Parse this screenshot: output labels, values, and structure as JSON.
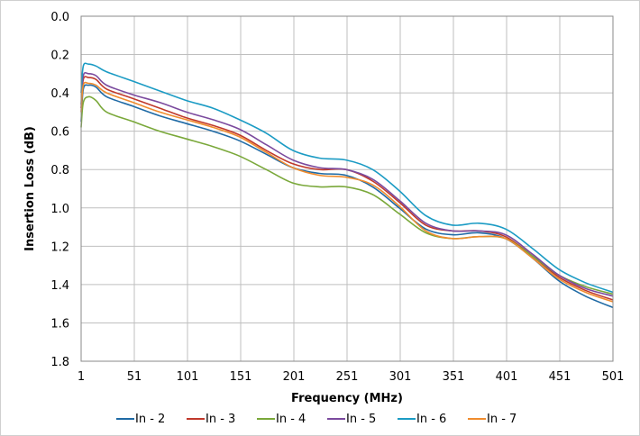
{
  "chart_data": {
    "type": "line",
    "title": "",
    "xlabel": "Frequency (MHz)",
    "ylabel": "Insertion Loss (dB)",
    "xlim": [
      1,
      501
    ],
    "ylim": [
      0.0,
      1.8
    ],
    "y_reversed": true,
    "x_ticks": [
      1,
      51,
      101,
      151,
      201,
      251,
      301,
      351,
      401,
      451,
      501
    ],
    "x_tick_labels": [
      "1",
      "51",
      "101",
      "151",
      "201",
      "251",
      "301",
      "351",
      "401",
      "451",
      "501"
    ],
    "y_ticks": [
      0.0,
      0.2,
      0.4,
      0.6,
      0.8,
      1.0,
      1.2,
      1.4,
      1.6,
      1.8
    ],
    "y_tick_labels": [
      "0.0",
      "0.2",
      "0.4",
      "0.6",
      "0.8",
      "1.0",
      "1.2",
      "1.4",
      "1.6",
      "1.8"
    ],
    "grid": true,
    "legend_position": "bottom",
    "series": [
      {
        "name": "In - 2",
        "color": "#1f6aa5",
        "x": [
          1,
          3,
          8,
          15,
          25,
          50,
          75,
          100,
          125,
          150,
          175,
          200,
          225,
          250,
          275,
          300,
          325,
          350,
          375,
          400,
          425,
          450,
          475,
          501
        ],
        "y": [
          0.55,
          0.38,
          0.36,
          0.37,
          0.42,
          0.47,
          0.52,
          0.56,
          0.6,
          0.65,
          0.72,
          0.79,
          0.82,
          0.83,
          0.89,
          1.0,
          1.11,
          1.14,
          1.13,
          1.16,
          1.26,
          1.38,
          1.46,
          1.52
        ]
      },
      {
        "name": "In - 3",
        "color": "#c0392b",
        "x": [
          1,
          3,
          8,
          15,
          25,
          50,
          75,
          100,
          125,
          150,
          175,
          200,
          225,
          250,
          275,
          300,
          325,
          350,
          375,
          400,
          425,
          450,
          475,
          501
        ],
        "y": [
          0.48,
          0.33,
          0.32,
          0.33,
          0.38,
          0.43,
          0.48,
          0.53,
          0.57,
          0.62,
          0.7,
          0.77,
          0.8,
          0.8,
          0.86,
          0.97,
          1.09,
          1.12,
          1.12,
          1.15,
          1.25,
          1.36,
          1.43,
          1.48
        ]
      },
      {
        "name": "In - 4",
        "color": "#7aa83a",
        "x": [
          1,
          3,
          8,
          15,
          25,
          50,
          75,
          100,
          125,
          150,
          175,
          200,
          225,
          250,
          275,
          300,
          325,
          350,
          375,
          400,
          425,
          450,
          475,
          501
        ],
        "y": [
          0.58,
          0.45,
          0.42,
          0.44,
          0.5,
          0.55,
          0.6,
          0.64,
          0.68,
          0.73,
          0.8,
          0.87,
          0.89,
          0.89,
          0.93,
          1.03,
          1.13,
          1.16,
          1.15,
          1.16,
          1.25,
          1.35,
          1.41,
          1.45
        ]
      },
      {
        "name": "In - 5",
        "color": "#7b4a9e",
        "x": [
          1,
          3,
          8,
          15,
          25,
          50,
          75,
          100,
          125,
          150,
          175,
          200,
          225,
          250,
          275,
          300,
          325,
          350,
          375,
          400,
          425,
          450,
          475,
          501
        ],
        "y": [
          0.46,
          0.31,
          0.3,
          0.31,
          0.36,
          0.41,
          0.45,
          0.5,
          0.54,
          0.59,
          0.67,
          0.75,
          0.79,
          0.8,
          0.85,
          0.96,
          1.08,
          1.12,
          1.12,
          1.14,
          1.24,
          1.35,
          1.42,
          1.46
        ]
      },
      {
        "name": "In - 6",
        "color": "#1b9bc4",
        "x": [
          1,
          3,
          8,
          15,
          25,
          50,
          75,
          100,
          125,
          150,
          175,
          200,
          225,
          250,
          275,
          300,
          325,
          350,
          375,
          400,
          425,
          450,
          475,
          501
        ],
        "y": [
          0.4,
          0.26,
          0.25,
          0.26,
          0.29,
          0.34,
          0.39,
          0.44,
          0.48,
          0.54,
          0.61,
          0.7,
          0.74,
          0.75,
          0.8,
          0.91,
          1.04,
          1.09,
          1.08,
          1.11,
          1.21,
          1.32,
          1.39,
          1.44
        ]
      },
      {
        "name": "In - 7",
        "color": "#f08c2e",
        "x": [
          1,
          3,
          8,
          15,
          25,
          50,
          75,
          100,
          125,
          150,
          175,
          200,
          225,
          250,
          275,
          300,
          325,
          350,
          375,
          400,
          425,
          450,
          475,
          501
        ],
        "y": [
          0.5,
          0.36,
          0.35,
          0.36,
          0.4,
          0.45,
          0.5,
          0.54,
          0.58,
          0.63,
          0.71,
          0.79,
          0.83,
          0.84,
          0.88,
          0.99,
          1.12,
          1.16,
          1.15,
          1.16,
          1.26,
          1.37,
          1.44,
          1.49
        ]
      }
    ]
  }
}
